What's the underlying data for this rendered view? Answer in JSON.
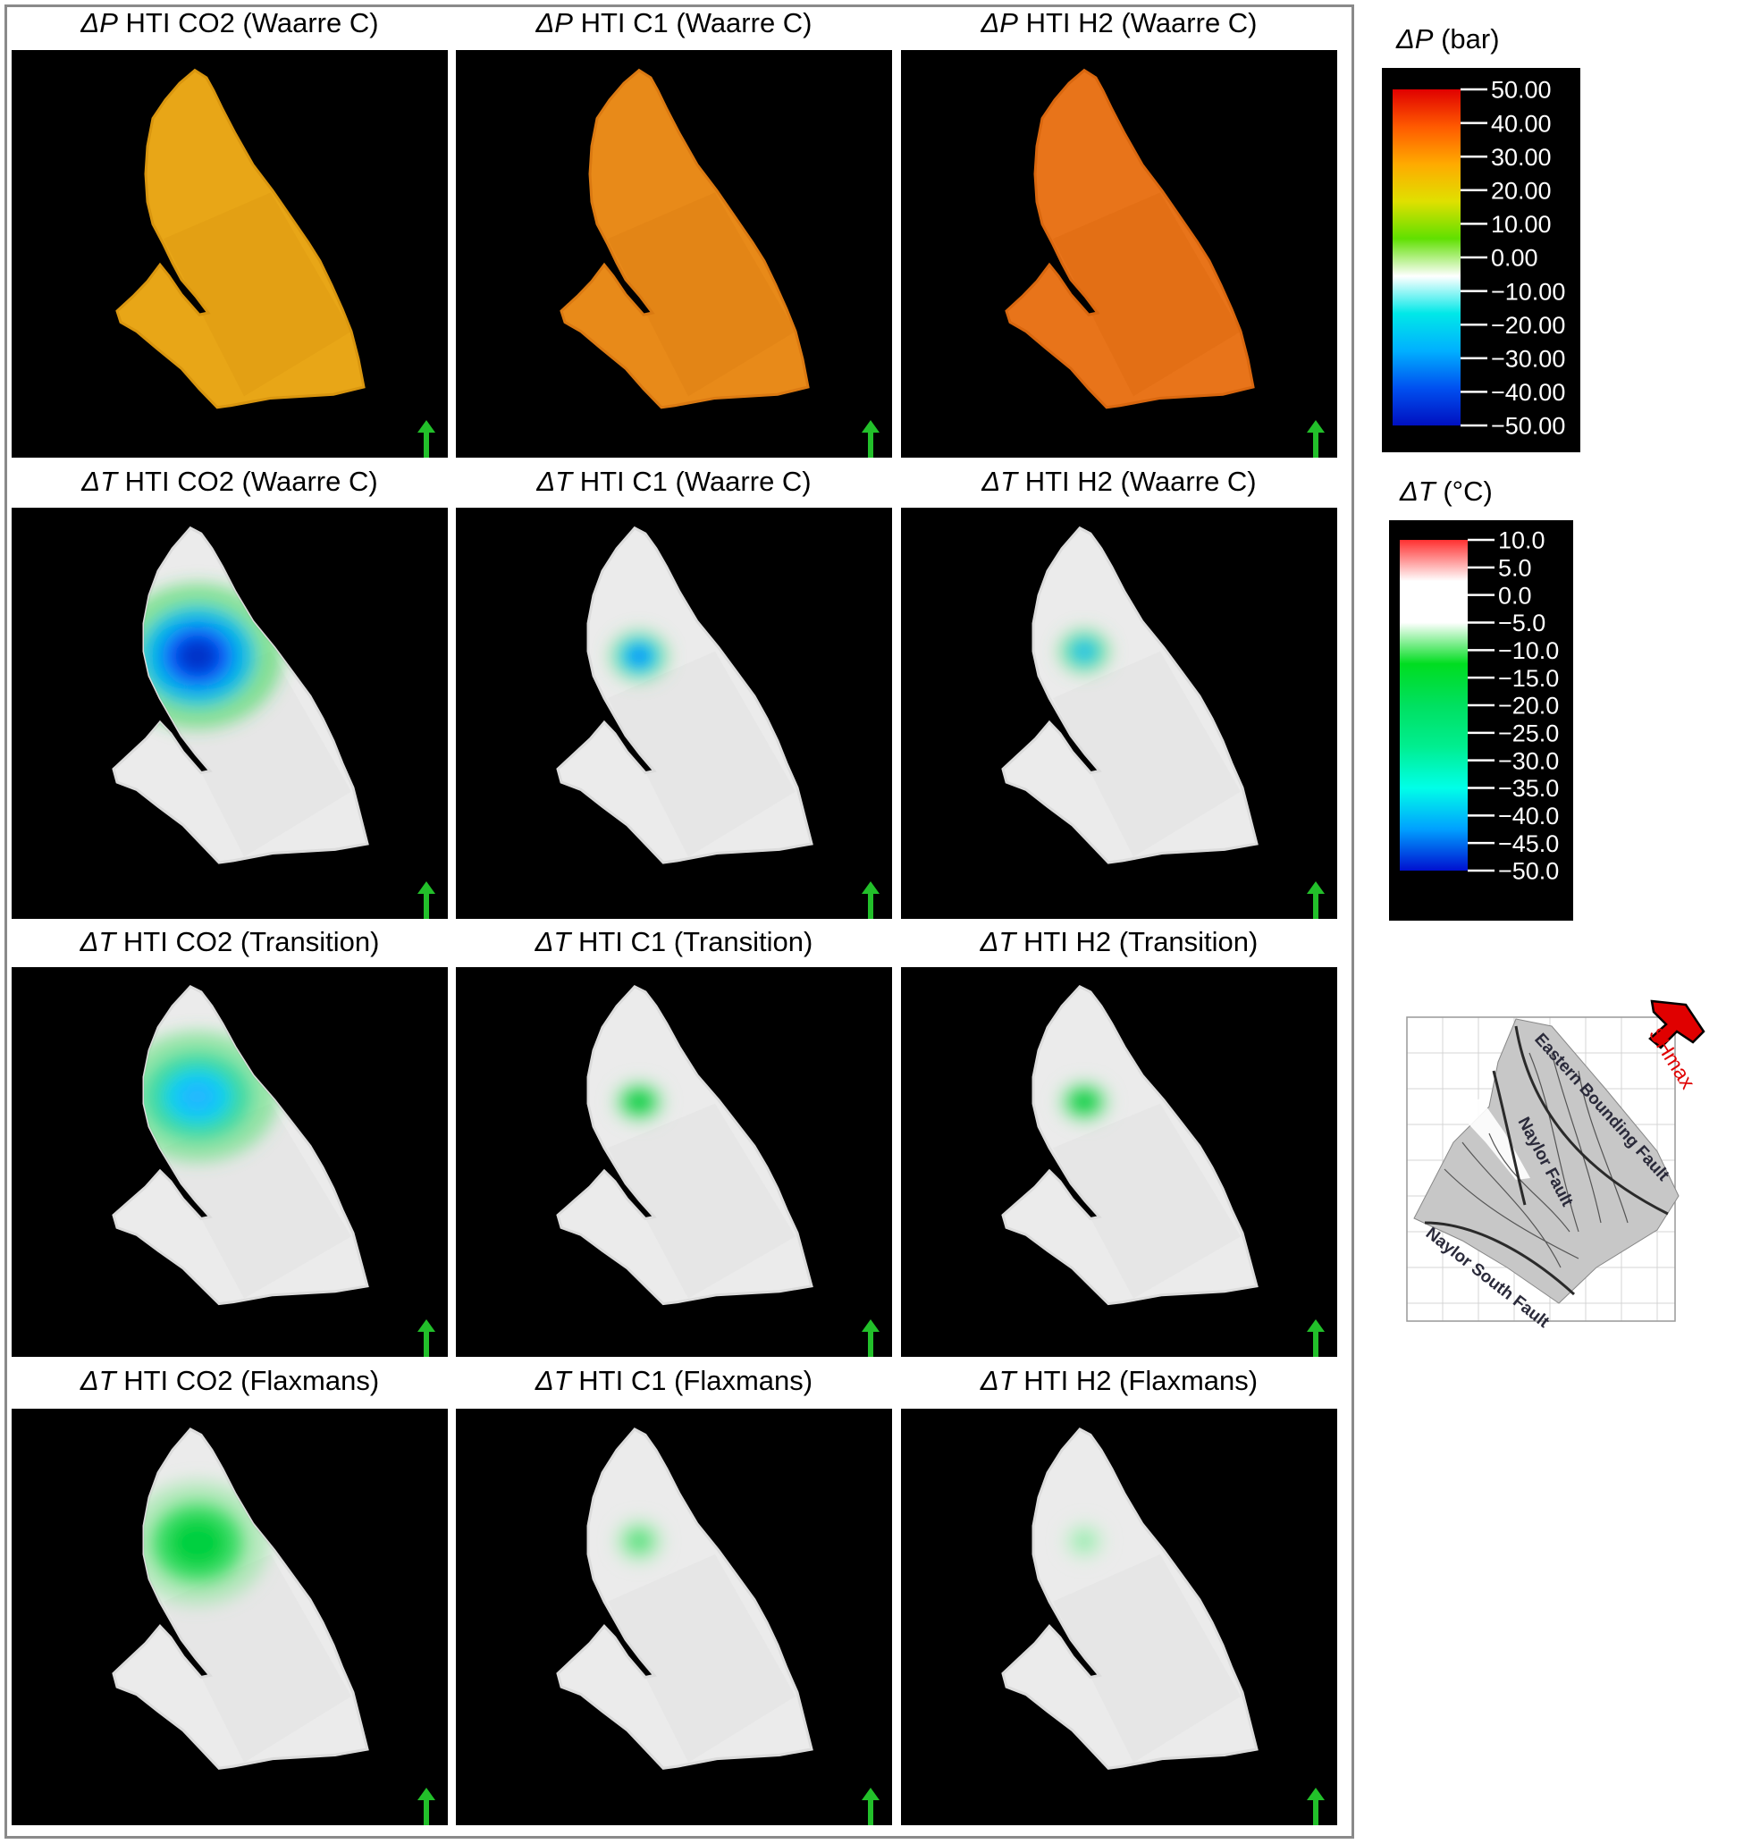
{
  "panels": [
    {
      "row": 0,
      "col": 0,
      "symbol": "ΔP",
      "label": "HTI CO2 (Waarre C)",
      "kind": "dp",
      "fill": "#e8a617",
      "dark": "#d9960f",
      "glow": null
    },
    {
      "row": 0,
      "col": 1,
      "symbol": "ΔP",
      "label": "HTI C1 (Waarre C)",
      "kind": "dp",
      "fill": "#e88a19",
      "dark": "#db7a12",
      "glow": null
    },
    {
      "row": 0,
      "col": 2,
      "symbol": "ΔP",
      "label": "HTI H2 (Waarre C)",
      "kind": "dp",
      "fill": "#e8741a",
      "dark": "#d9670f",
      "glow": null
    },
    {
      "row": 1,
      "col": 0,
      "symbol": "ΔT",
      "label": "HTI CO2 (Waarre C)",
      "kind": "dt",
      "fill": "#ebebeb",
      "dark": "#dcdcdc",
      "glow": "co2-waarre"
    },
    {
      "row": 1,
      "col": 1,
      "symbol": "ΔT",
      "label": "HTI C1 (Waarre C)",
      "kind": "dt",
      "fill": "#ebebeb",
      "dark": "#dcdcdc",
      "glow": "small-blue"
    },
    {
      "row": 1,
      "col": 2,
      "symbol": "ΔT",
      "label": "HTI H2 (Waarre C)",
      "kind": "dt",
      "fill": "#ebebeb",
      "dark": "#dcdcdc",
      "glow": "small-cyan"
    },
    {
      "row": 2,
      "col": 0,
      "symbol": "ΔT",
      "label": "HTI CO2 (Transition)",
      "kind": "dt",
      "fill": "#ebebeb",
      "dark": "#dcdcdc",
      "glow": "co2-transition"
    },
    {
      "row": 2,
      "col": 1,
      "symbol": "ΔT",
      "label": "HTI C1 (Transition)",
      "kind": "dt",
      "fill": "#ebebeb",
      "dark": "#dcdcdc",
      "glow": "small-green"
    },
    {
      "row": 2,
      "col": 2,
      "symbol": "ΔT",
      "label": "HTI H2 (Transition)",
      "kind": "dt",
      "fill": "#ebebeb",
      "dark": "#dcdcdc",
      "glow": "small-green"
    },
    {
      "row": 3,
      "col": 0,
      "symbol": "ΔT",
      "label": "HTI CO2 (Flaxmans)",
      "kind": "dt",
      "fill": "#ebebeb",
      "dark": "#dcdcdc",
      "glow": "co2-flaxmans"
    },
    {
      "row": 3,
      "col": 1,
      "symbol": "ΔT",
      "label": "HTI C1 (Flaxmans)",
      "kind": "dt",
      "fill": "#ebebeb",
      "dark": "#dcdcdc",
      "glow": "faint-green"
    },
    {
      "row": 3,
      "col": 2,
      "symbol": "ΔT",
      "label": "HTI H2 (Flaxmans)",
      "kind": "dt",
      "fill": "#ebebeb",
      "dark": "#dcdcdc",
      "glow": "fainter-green"
    }
  ],
  "legend_dp": {
    "symbol": "ΔP",
    "unit": "(bar)",
    "ticks": [
      "50.00",
      "40.00",
      "30.00",
      "20.00",
      "10.00",
      "0.00",
      "−10.00",
      "−20.00",
      "−30.00",
      "−40.00",
      "−50.00"
    ],
    "colors": [
      "#e00000",
      "#ff5a00",
      "#ffaa00",
      "#e0e000",
      "#60e000",
      "#ffffff",
      "#00e8e8",
      "#00b0ff",
      "#0050f0",
      "#0010c0"
    ]
  },
  "legend_dt": {
    "symbol": "ΔT",
    "unit": "(°C)",
    "ticks": [
      "10.0",
      "5.0",
      "0.0",
      "−5.0",
      "−10.0",
      "−15.0",
      "−20.0",
      "−25.0",
      "−30.0",
      "−35.0",
      "−40.0",
      "−45.0",
      "−50.0"
    ],
    "colors": [
      "#ff3030",
      "#ffffff",
      "#ffffff",
      "#00dd20",
      "#00e060",
      "#00ee90",
      "#00ffe8",
      "#00a0ff",
      "#0010d0"
    ]
  },
  "inset": {
    "faults": [
      "Eastern Bounding Fault",
      "Naylor Fault",
      "Naylor South Fault"
    ],
    "stress_label": "SHmax",
    "arrow_color": "#e00000"
  },
  "north_arrow_color": "#22c02a"
}
